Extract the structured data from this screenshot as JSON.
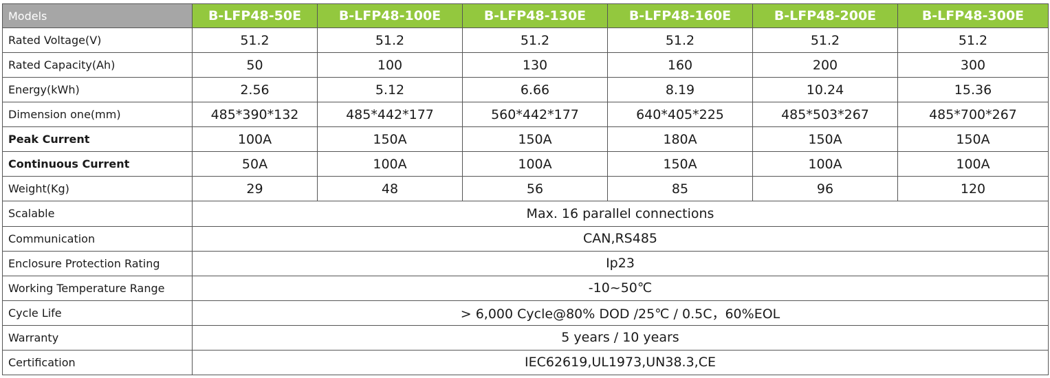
{
  "header": {
    "corner_label": "Models",
    "models": [
      "B-LFP48-50E",
      "B-LFP48-100E",
      "B-LFP48-130E",
      "B-LFP48-160E",
      "B-LFP48-200E",
      "B-LFP48-300E"
    ],
    "header_bg": "#93c83e",
    "corner_bg": "#a6a6a6"
  },
  "rows": [
    {
      "label": "Rated Voltage(V)",
      "values": [
        "51.2",
        "51.2",
        "51.2",
        "51.2",
        "51.2",
        "51.2"
      ]
    },
    {
      "label": "Rated Capacity(Ah)",
      "values": [
        "50",
        "100",
        "130",
        "160",
        "200",
        "300"
      ]
    },
    {
      "label": "Energy(kWh)",
      "values": [
        "2.56",
        "5.12",
        "6.66",
        "8.19",
        "10.24",
        "15.36"
      ]
    },
    {
      "label": "Dimension one(mm)",
      "values": [
        "485*390*132",
        "485*442*177",
        "560*442*177",
        "640*405*225",
        "485*503*267",
        "485*700*267"
      ]
    },
    {
      "label": "Peak Current",
      "values": [
        "100A",
        "150A",
        "150A",
        "180A",
        "150A",
        "150A"
      ]
    },
    {
      "label": "Continuous Current",
      "values": [
        "50A",
        "100A",
        "100A",
        "150A",
        "100A",
        "100A"
      ]
    },
    {
      "label": "Weight(Kg)",
      "values": [
        "29",
        "48",
        "56",
        "85",
        "96",
        "120"
      ]
    }
  ],
  "shared_rows": [
    {
      "label": "Scalable",
      "value": "Max. 16 parallel connections"
    },
    {
      "label": "Communication",
      "value": "CAN,RS485"
    },
    {
      "label": "Enclosure Protection Rating",
      "value": "Ip23"
    },
    {
      "label": "Working Temperature Range",
      "value": "-10~50℃"
    },
    {
      "label": "Cycle Life",
      "value": "> 6,000 Cycle@80% DOD /25℃ / 0.5C，60%EOL"
    },
    {
      "label": "Warranty",
      "value": "5 years / 10 years"
    },
    {
      "label": "Certification",
      "value": "IEC62619,UL1973,UN38.3,CE"
    }
  ]
}
